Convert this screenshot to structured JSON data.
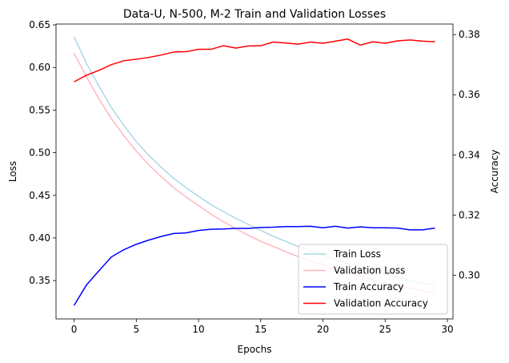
{
  "chart_data": {
    "type": "line",
    "title": "Data-U, N-500, M-2 Train and Validation Losses",
    "xlabel": "Epochs",
    "ylabel_left": "Loss",
    "ylabel_right": "Accuracy",
    "xlim": [
      -1.45,
      30.45
    ],
    "ylim_left": [
      0.305,
      0.651
    ],
    "ylim_right": [
      0.2855,
      0.3835
    ],
    "x_ticks": [
      0,
      5,
      10,
      15,
      20,
      25,
      30
    ],
    "y_ticks_left": [
      0.35,
      0.4,
      0.45,
      0.5,
      0.55,
      0.6,
      0.65
    ],
    "y_ticks_right": [
      0.3,
      0.32,
      0.34,
      0.36,
      0.38
    ],
    "grid": false,
    "legend_position": "bottom-right",
    "x": [
      0,
      1,
      2,
      3,
      4,
      5,
      6,
      7,
      8,
      9,
      10,
      11,
      12,
      13,
      14,
      15,
      16,
      17,
      18,
      19,
      20,
      21,
      22,
      23,
      24,
      25,
      26,
      27,
      28,
      29
    ],
    "series": [
      {
        "name": "Train Loss",
        "axis": "left",
        "color": "#add8e6",
        "values": [
          0.636,
          0.605,
          0.578,
          0.553,
          0.532,
          0.513,
          0.497,
          0.483,
          0.47,
          0.459,
          0.449,
          0.439,
          0.431,
          0.423,
          0.416,
          0.409,
          0.402,
          0.396,
          0.39,
          0.385,
          0.38,
          0.375,
          0.37,
          0.366,
          0.362,
          0.358,
          0.354,
          0.35,
          0.347,
          0.344
        ]
      },
      {
        "name": "Validation Loss",
        "axis": "left",
        "color": "#ffb6c1",
        "values": [
          0.617,
          0.589,
          0.563,
          0.54,
          0.52,
          0.502,
          0.486,
          0.472,
          0.459,
          0.448,
          0.438,
          0.428,
          0.419,
          0.411,
          0.403,
          0.396,
          0.39,
          0.384,
          0.378,
          0.373,
          0.368,
          0.363,
          0.359,
          0.355,
          0.351,
          0.347,
          0.344,
          0.341,
          0.338,
          0.335
        ]
      },
      {
        "name": "Train Accuracy",
        "axis": "right",
        "color": "#0000ff",
        "values": [
          0.29,
          0.2968,
          0.3015,
          0.3061,
          0.3085,
          0.3103,
          0.3117,
          0.3129,
          0.3139,
          0.3141,
          0.3149,
          0.3153,
          0.3154,
          0.3156,
          0.3156,
          0.3159,
          0.316,
          0.3162,
          0.3162,
          0.3163,
          0.3158,
          0.3163,
          0.3157,
          0.3161,
          0.3158,
          0.3158,
          0.3157,
          0.3151,
          0.3151,
          0.3157
        ]
      },
      {
        "name": "Validation Accuracy",
        "axis": "right",
        "color": "#ff0000",
        "values": [
          0.3643,
          0.3665,
          0.3681,
          0.37,
          0.3713,
          0.3718,
          0.3724,
          0.3732,
          0.3742,
          0.3743,
          0.3751,
          0.3751,
          0.3763,
          0.3755,
          0.3762,
          0.3763,
          0.3775,
          0.3772,
          0.3768,
          0.3775,
          0.3771,
          0.3778,
          0.3785,
          0.3765,
          0.3776,
          0.3771,
          0.3779,
          0.3782,
          0.3778,
          0.3776
        ]
      }
    ]
  }
}
